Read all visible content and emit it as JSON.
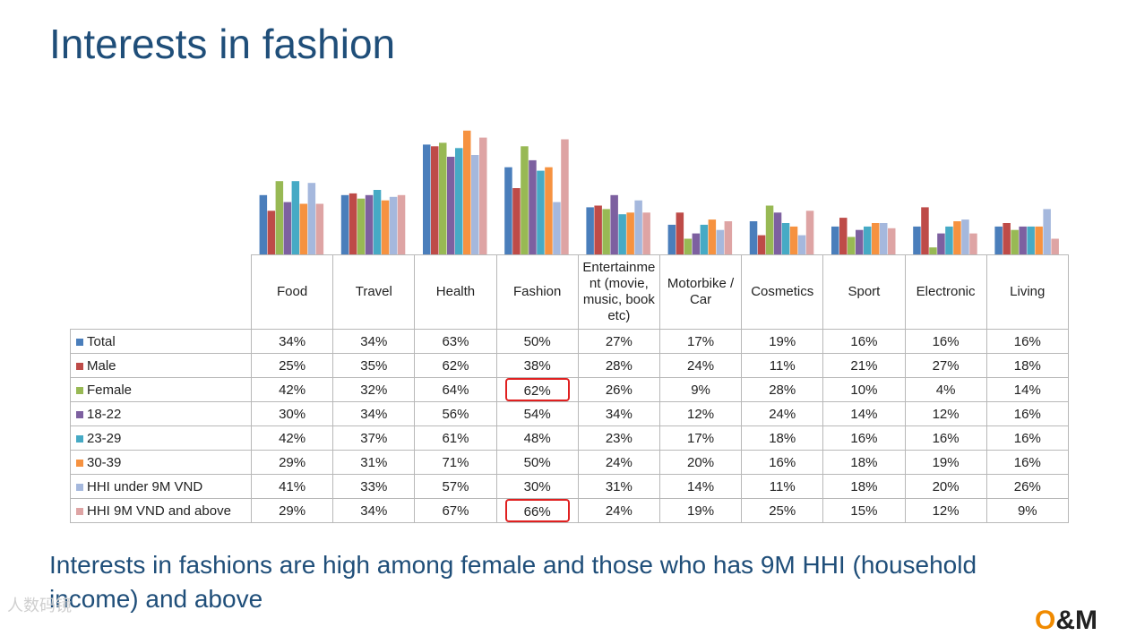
{
  "title": "Interests in fashion",
  "caption": "Interests in fashions are high among female and those who has 9M HHI (household income) and above",
  "watermark": "人数码镜",
  "logo": {
    "o": "O",
    "rest": "&M"
  },
  "highlight_color": "#e02020",
  "highlighted_cells": [
    [
      2,
      3
    ],
    [
      7,
      3
    ]
  ],
  "chart_data": {
    "type": "bar",
    "categories": [
      "Food",
      "Travel",
      "Health",
      "Fashion",
      "Entertainment (movie, music, book etc)",
      "Motorbike / Car",
      "Cosmetics",
      "Sport",
      "Electronic",
      "Living"
    ],
    "category_header_lines": [
      [
        "Food"
      ],
      [
        "Travel"
      ],
      [
        "Health"
      ],
      [
        "Fashion"
      ],
      [
        "Entertainme",
        "nt (movie,",
        "music, book",
        "etc)"
      ],
      [
        "Motorbike /",
        "Car"
      ],
      [
        "Cosmetics"
      ],
      [
        "Sport"
      ],
      [
        "Electronic"
      ],
      [
        "Living"
      ]
    ],
    "series": [
      {
        "name": "Total",
        "color": "#4a7ebb",
        "values": [
          34,
          34,
          63,
          50,
          27,
          17,
          19,
          16,
          16,
          16
        ]
      },
      {
        "name": "Male",
        "color": "#be4b48",
        "values": [
          25,
          35,
          62,
          38,
          28,
          24,
          11,
          21,
          27,
          18
        ]
      },
      {
        "name": "Female",
        "color": "#98b954",
        "values": [
          42,
          32,
          64,
          62,
          26,
          9,
          28,
          10,
          4,
          14
        ]
      },
      {
        "name": "18-22",
        "color": "#7d60a0",
        "values": [
          30,
          34,
          56,
          54,
          34,
          12,
          24,
          14,
          12,
          16
        ]
      },
      {
        "name": "23-29",
        "color": "#46aac5",
        "values": [
          42,
          37,
          61,
          48,
          23,
          17,
          18,
          16,
          16,
          16
        ]
      },
      {
        "name": "30-39",
        "color": "#f69240",
        "values": [
          29,
          31,
          71,
          50,
          24,
          20,
          16,
          18,
          19,
          16
        ]
      },
      {
        "name": "HHI under 9M VND",
        "color": "#a5b8dd",
        "values": [
          41,
          33,
          57,
          30,
          31,
          14,
          11,
          18,
          20,
          26
        ]
      },
      {
        "name": "HHI 9M VND and above",
        "color": "#dea4a4",
        "values": [
          29,
          34,
          67,
          66,
          24,
          19,
          25,
          15,
          12,
          9
        ]
      }
    ],
    "value_suffix": "%",
    "ylim": [
      0,
      75
    ],
    "legend": "data-table",
    "grid": false
  }
}
